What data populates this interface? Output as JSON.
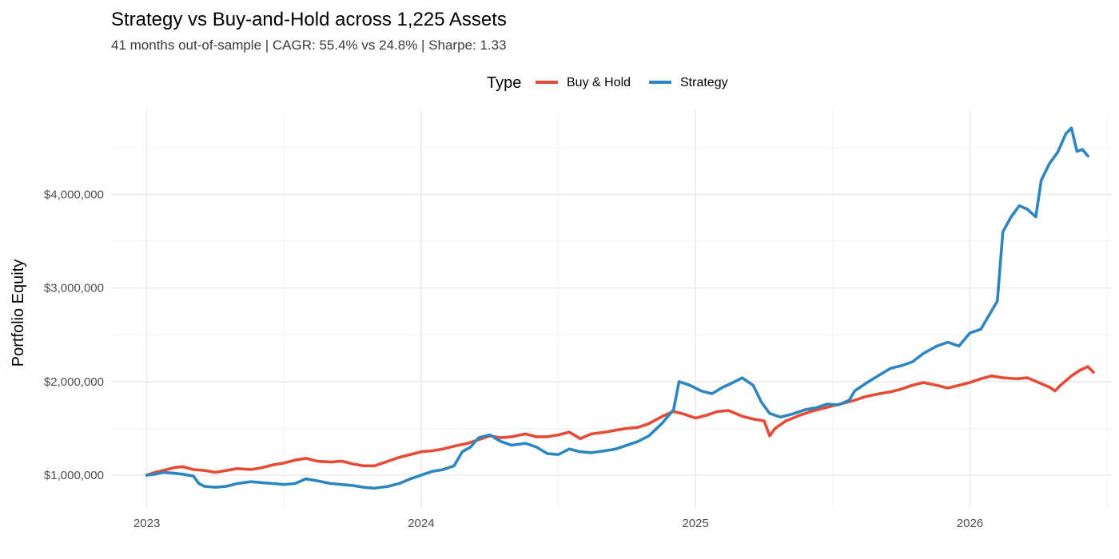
{
  "chart_data": {
    "type": "line",
    "title": "Strategy vs Buy-and-Hold across 1,225 Assets",
    "subtitle": "41 months out-of-sample | CAGR: 55.4% vs 24.8% | Sharpe: 1.33",
    "xlabel": "",
    "ylabel": "Portfolio Equity",
    "legend": {
      "title": "Type",
      "position": "top"
    },
    "grid": true,
    "x_ticks": [
      {
        "value": 2023.0,
        "label": "2023"
      },
      {
        "value": 2024.0,
        "label": "2024"
      },
      {
        "value": 2025.0,
        "label": "2025"
      },
      {
        "value": 2026.0,
        "label": "2026"
      }
    ],
    "y_ticks": [
      {
        "value": 1000000,
        "label": "$1,000,000"
      },
      {
        "value": 2000000,
        "label": "$2,000,000"
      },
      {
        "value": 3000000,
        "label": "$3,000,000"
      },
      {
        "value": 4000000,
        "label": "$4,000,000"
      }
    ],
    "xlim": [
      2022.87,
      2026.52
    ],
    "ylim": [
      650000,
      4900000
    ],
    "series": [
      {
        "name": "Buy & Hold",
        "color": "#E64B35",
        "points": [
          [
            2023.0,
            1000000
          ],
          [
            2023.03,
            1030000
          ],
          [
            2023.06,
            1050000
          ],
          [
            2023.1,
            1080000
          ],
          [
            2023.13,
            1090000
          ],
          [
            2023.17,
            1060000
          ],
          [
            2023.21,
            1050000
          ],
          [
            2023.25,
            1030000
          ],
          [
            2023.29,
            1050000
          ],
          [
            2023.33,
            1070000
          ],
          [
            2023.38,
            1060000
          ],
          [
            2023.42,
            1080000
          ],
          [
            2023.46,
            1110000
          ],
          [
            2023.5,
            1130000
          ],
          [
            2023.54,
            1160000
          ],
          [
            2023.58,
            1180000
          ],
          [
            2023.62,
            1150000
          ],
          [
            2023.67,
            1140000
          ],
          [
            2023.71,
            1150000
          ],
          [
            2023.75,
            1120000
          ],
          [
            2023.79,
            1100000
          ],
          [
            2023.83,
            1100000
          ],
          [
            2023.88,
            1150000
          ],
          [
            2023.92,
            1190000
          ],
          [
            2023.96,
            1220000
          ],
          [
            2024.0,
            1250000
          ],
          [
            2024.04,
            1260000
          ],
          [
            2024.08,
            1280000
          ],
          [
            2024.12,
            1310000
          ],
          [
            2024.17,
            1340000
          ],
          [
            2024.21,
            1380000
          ],
          [
            2024.25,
            1420000
          ],
          [
            2024.29,
            1400000
          ],
          [
            2024.33,
            1410000
          ],
          [
            2024.38,
            1440000
          ],
          [
            2024.42,
            1410000
          ],
          [
            2024.46,
            1410000
          ],
          [
            2024.5,
            1430000
          ],
          [
            2024.54,
            1460000
          ],
          [
            2024.58,
            1390000
          ],
          [
            2024.62,
            1440000
          ],
          [
            2024.67,
            1460000
          ],
          [
            2024.71,
            1480000
          ],
          [
            2024.75,
            1500000
          ],
          [
            2024.79,
            1510000
          ],
          [
            2024.83,
            1550000
          ],
          [
            2024.88,
            1630000
          ],
          [
            2024.92,
            1680000
          ],
          [
            2024.96,
            1650000
          ],
          [
            2025.0,
            1610000
          ],
          [
            2025.04,
            1640000
          ],
          [
            2025.08,
            1680000
          ],
          [
            2025.12,
            1690000
          ],
          [
            2025.17,
            1630000
          ],
          [
            2025.21,
            1600000
          ],
          [
            2025.25,
            1580000
          ],
          [
            2025.27,
            1420000
          ],
          [
            2025.29,
            1500000
          ],
          [
            2025.33,
            1580000
          ],
          [
            2025.38,
            1640000
          ],
          [
            2025.42,
            1680000
          ],
          [
            2025.46,
            1710000
          ],
          [
            2025.5,
            1740000
          ],
          [
            2025.54,
            1770000
          ],
          [
            2025.58,
            1800000
          ],
          [
            2025.62,
            1840000
          ],
          [
            2025.67,
            1870000
          ],
          [
            2025.71,
            1890000
          ],
          [
            2025.75,
            1920000
          ],
          [
            2025.79,
            1960000
          ],
          [
            2025.83,
            1990000
          ],
          [
            2025.88,
            1960000
          ],
          [
            2025.92,
            1930000
          ],
          [
            2025.96,
            1960000
          ],
          [
            2026.0,
            1990000
          ],
          [
            2026.04,
            2030000
          ],
          [
            2026.08,
            2060000
          ],
          [
            2026.12,
            2040000
          ],
          [
            2026.17,
            2030000
          ],
          [
            2026.21,
            2040000
          ],
          [
            2026.25,
            1990000
          ],
          [
            2026.29,
            1940000
          ],
          [
            2026.31,
            1900000
          ],
          [
            2026.33,
            1960000
          ],
          [
            2026.37,
            2060000
          ],
          [
            2026.4,
            2120000
          ],
          [
            2026.43,
            2160000
          ],
          [
            2026.45,
            2100000
          ]
        ]
      },
      {
        "name": "Strategy",
        "color": "#2E86C1",
        "points": [
          [
            2023.0,
            1000000
          ],
          [
            2023.03,
            1010000
          ],
          [
            2023.06,
            1030000
          ],
          [
            2023.1,
            1020000
          ],
          [
            2023.13,
            1010000
          ],
          [
            2023.17,
            990000
          ],
          [
            2023.19,
            910000
          ],
          [
            2023.21,
            880000
          ],
          [
            2023.25,
            870000
          ],
          [
            2023.29,
            880000
          ],
          [
            2023.33,
            910000
          ],
          [
            2023.38,
            930000
          ],
          [
            2023.42,
            920000
          ],
          [
            2023.46,
            910000
          ],
          [
            2023.5,
            900000
          ],
          [
            2023.54,
            910000
          ],
          [
            2023.58,
            960000
          ],
          [
            2023.62,
            940000
          ],
          [
            2023.67,
            910000
          ],
          [
            2023.71,
            900000
          ],
          [
            2023.75,
            890000
          ],
          [
            2023.79,
            870000
          ],
          [
            2023.83,
            860000
          ],
          [
            2023.88,
            880000
          ],
          [
            2023.92,
            910000
          ],
          [
            2023.96,
            960000
          ],
          [
            2024.0,
            1000000
          ],
          [
            2024.04,
            1040000
          ],
          [
            2024.08,
            1060000
          ],
          [
            2024.12,
            1100000
          ],
          [
            2024.15,
            1250000
          ],
          [
            2024.18,
            1300000
          ],
          [
            2024.21,
            1400000
          ],
          [
            2024.25,
            1430000
          ],
          [
            2024.29,
            1360000
          ],
          [
            2024.33,
            1320000
          ],
          [
            2024.38,
            1340000
          ],
          [
            2024.42,
            1300000
          ],
          [
            2024.46,
            1230000
          ],
          [
            2024.5,
            1220000
          ],
          [
            2024.54,
            1280000
          ],
          [
            2024.58,
            1250000
          ],
          [
            2024.62,
            1240000
          ],
          [
            2024.67,
            1260000
          ],
          [
            2024.71,
            1280000
          ],
          [
            2024.75,
            1320000
          ],
          [
            2024.79,
            1360000
          ],
          [
            2024.83,
            1420000
          ],
          [
            2024.88,
            1560000
          ],
          [
            2024.92,
            1700000
          ],
          [
            2024.94,
            2000000
          ],
          [
            2024.98,
            1960000
          ],
          [
            2025.02,
            1900000
          ],
          [
            2025.06,
            1870000
          ],
          [
            2025.1,
            1940000
          ],
          [
            2025.13,
            1980000
          ],
          [
            2025.17,
            2040000
          ],
          [
            2025.21,
            1960000
          ],
          [
            2025.24,
            1780000
          ],
          [
            2025.27,
            1660000
          ],
          [
            2025.31,
            1620000
          ],
          [
            2025.35,
            1650000
          ],
          [
            2025.4,
            1700000
          ],
          [
            2025.44,
            1720000
          ],
          [
            2025.48,
            1760000
          ],
          [
            2025.52,
            1750000
          ],
          [
            2025.56,
            1800000
          ],
          [
            2025.58,
            1900000
          ],
          [
            2025.62,
            1980000
          ],
          [
            2025.67,
            2070000
          ],
          [
            2025.71,
            2140000
          ],
          [
            2025.75,
            2170000
          ],
          [
            2025.79,
            2210000
          ],
          [
            2025.83,
            2300000
          ],
          [
            2025.88,
            2380000
          ],
          [
            2025.92,
            2420000
          ],
          [
            2025.96,
            2380000
          ],
          [
            2026.0,
            2520000
          ],
          [
            2026.04,
            2560000
          ],
          [
            2026.07,
            2710000
          ],
          [
            2026.1,
            2860000
          ],
          [
            2026.12,
            3600000
          ],
          [
            2026.15,
            3760000
          ],
          [
            2026.18,
            3880000
          ],
          [
            2026.21,
            3840000
          ],
          [
            2026.24,
            3760000
          ],
          [
            2026.26,
            4150000
          ],
          [
            2026.29,
            4330000
          ],
          [
            2026.32,
            4450000
          ],
          [
            2026.35,
            4650000
          ],
          [
            2026.37,
            4710000
          ],
          [
            2026.39,
            4460000
          ],
          [
            2026.41,
            4480000
          ],
          [
            2026.43,
            4410000
          ]
        ]
      }
    ]
  }
}
